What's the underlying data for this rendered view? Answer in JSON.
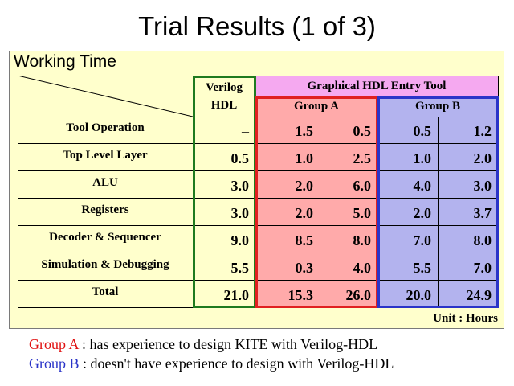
{
  "title": "Trial Results (1 of 3)",
  "panel_label": "Working Time",
  "headers": {
    "verilog_line1": "Verilog",
    "verilog_line2": "HDL",
    "graphical": "Graphical HDL Entry Tool",
    "group_a": "Group A",
    "group_b": "Group B"
  },
  "rows": [
    {
      "label": "Tool Operation",
      "verilog": "–",
      "a1": "1.5",
      "a2": "0.5",
      "b1": "0.5",
      "b2": "1.2"
    },
    {
      "label": "Top Level Layer",
      "verilog": "0.5",
      "a1": "1.0",
      "a2": "2.5",
      "b1": "1.0",
      "b2": "2.0"
    },
    {
      "label": "ALU",
      "verilog": "3.0",
      "a1": "2.0",
      "a2": "6.0",
      "b1": "4.0",
      "b2": "3.0"
    },
    {
      "label": "Registers",
      "verilog": "3.0",
      "a1": "2.0",
      "a2": "5.0",
      "b1": "2.0",
      "b2": "3.7"
    },
    {
      "label": "Decoder & Sequencer",
      "verilog": "9.0",
      "a1": "8.5",
      "a2": "8.0",
      "b1": "7.0",
      "b2": "8.0"
    },
    {
      "label": "Simulation & Debugging",
      "verilog": "5.5",
      "a1": "0.3",
      "a2": "4.0",
      "b1": "5.5",
      "b2": "7.0"
    },
    {
      "label": "Total",
      "verilog": "21.0",
      "a1": "15.3",
      "a2": "26.0",
      "b1": "20.0",
      "b2": "24.9"
    }
  ],
  "unit": "Unit : Hours",
  "notes": {
    "a_name": "Group A",
    "a_text": " : has experience to design KITE with Verilog-HDL",
    "b_name": "Group B",
    "b_text": " : doesn't have experience to design with Verilog-HDL"
  },
  "colors": {
    "panel_bg": "#ffffcc",
    "verilog_border": "#1f7a1f",
    "graphical_bg": "#f5a9f0",
    "group_a_bg": "#ffaaaa",
    "group_a_border": "#e02020",
    "group_b_bg": "#b3b3ee",
    "group_b_border": "#2a34c8"
  }
}
